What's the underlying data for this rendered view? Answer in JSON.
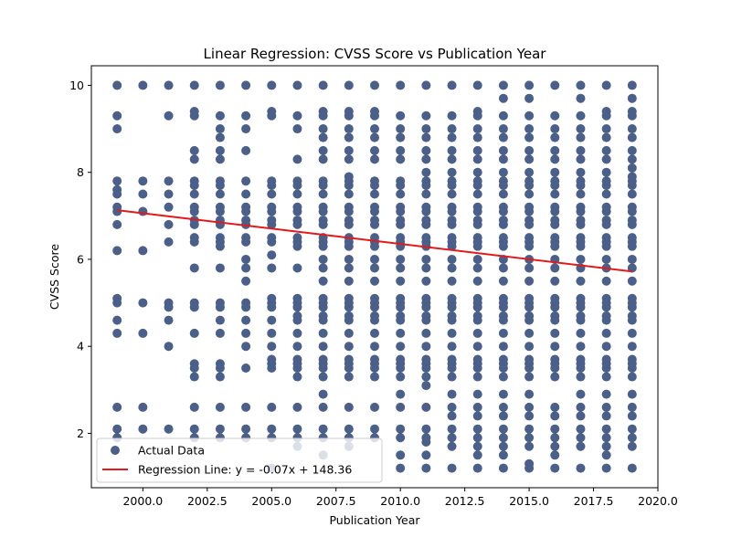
{
  "chart_data": {
    "type": "scatter",
    "title": "Linear Regression: CVSS Score vs Publication Year",
    "xlabel": "Publication Year",
    "ylabel": "CVSS Score",
    "xlim": [
      1998.0,
      2020.0
    ],
    "ylim": [
      0.75,
      10.45
    ],
    "x_ticks": [
      2000.0,
      2002.5,
      2005.0,
      2007.5,
      2010.0,
      2012.5,
      2015.0,
      2017.5,
      2020.0
    ],
    "x_tick_labels": [
      "2000.0",
      "2002.5",
      "2005.0",
      "2007.5",
      "2010.0",
      "2012.5",
      "2015.0",
      "2017.5",
      "2020.0"
    ],
    "y_ticks": [
      2,
      4,
      6,
      8,
      10
    ],
    "y_tick_labels": [
      "2",
      "4",
      "6",
      "8",
      "10"
    ],
    "grid": false,
    "legend_position": "lower-left",
    "colors": {
      "points": "#4a5f8a",
      "line": "#e31a1c"
    },
    "series": [
      {
        "name": "Actual Data",
        "kind": "scatter",
        "points_by_year": [
          {
            "year": 1999,
            "scores": [
              10.0,
              9.3,
              9.0,
              7.8,
              7.6,
              7.5,
              7.2,
              7.1,
              6.8,
              6.2,
              5.1,
              5.0,
              4.6,
              4.3,
              2.6,
              2.1,
              1.9
            ]
          },
          {
            "year": 2000,
            "scores": [
              10.0,
              7.8,
              7.5,
              7.1,
              6.2,
              5.0,
              4.3,
              2.6,
              2.1
            ]
          },
          {
            "year": 2001,
            "scores": [
              10.0,
              9.3,
              7.8,
              7.5,
              7.2,
              6.8,
              6.4,
              5.0,
              4.9,
              4.6,
              4.0,
              2.1
            ]
          },
          {
            "year": 2002,
            "scores": [
              10.0,
              9.4,
              9.3,
              8.5,
              8.3,
              7.8,
              7.7,
              7.5,
              7.2,
              7.1,
              6.9,
              6.8,
              6.5,
              6.4,
              5.8,
              5.0,
              4.9,
              4.3,
              3.6,
              3.5,
              3.3,
              2.6,
              2.1,
              1.9
            ]
          },
          {
            "year": 2003,
            "scores": [
              10.0,
              9.3,
              9.0,
              8.8,
              8.5,
              8.3,
              7.8,
              7.7,
              7.5,
              7.2,
              7.1,
              6.9,
              6.8,
              6.5,
              6.4,
              6.3,
              5.8,
              5.0,
              4.9,
              4.6,
              4.3,
              3.6,
              3.5,
              3.3,
              2.6,
              2.1,
              1.9
            ]
          },
          {
            "year": 2004,
            "scores": [
              10.0,
              9.3,
              9.0,
              8.5,
              7.8,
              7.5,
              7.2,
              7.1,
              6.9,
              6.8,
              6.5,
              6.4,
              6.0,
              5.8,
              5.5,
              5.0,
              4.9,
              4.6,
              4.3,
              4.0,
              3.5,
              2.6,
              2.1,
              1.9
            ]
          },
          {
            "year": 2005,
            "scores": [
              10.0,
              9.4,
              9.3,
              7.8,
              7.7,
              7.5,
              7.2,
              7.1,
              6.9,
              6.8,
              6.5,
              6.4,
              6.1,
              5.8,
              5.1,
              5.0,
              4.9,
              4.6,
              4.3,
              4.0,
              3.7,
              3.6,
              3.5,
              2.6,
              2.1,
              1.9,
              1.2
            ]
          },
          {
            "year": 2006,
            "scores": [
              10.0,
              9.3,
              9.0,
              8.3,
              7.8,
              7.7,
              7.5,
              7.2,
              7.1,
              6.9,
              6.8,
              6.5,
              6.4,
              6.3,
              5.8,
              5.1,
              5.0,
              4.9,
              4.7,
              4.6,
              4.3,
              4.0,
              3.7,
              3.6,
              3.5,
              3.3,
              2.6,
              2.1,
              1.9,
              1.7
            ]
          },
          {
            "year": 2007,
            "scores": [
              10.0,
              9.4,
              9.3,
              9.0,
              8.8,
              8.5,
              8.3,
              7.8,
              7.7,
              7.5,
              7.2,
              7.1,
              6.9,
              6.8,
              6.5,
              6.4,
              6.3,
              6.0,
              5.8,
              5.5,
              5.1,
              5.0,
              4.9,
              4.7,
              4.6,
              4.3,
              4.0,
              3.7,
              3.6,
              3.5,
              3.3,
              2.9,
              2.6,
              2.1,
              1.9,
              1.5
            ]
          },
          {
            "year": 2008,
            "scores": [
              10.0,
              9.4,
              9.3,
              9.0,
              8.8,
              8.5,
              8.3,
              7.9,
              7.8,
              7.7,
              7.5,
              7.2,
              7.1,
              6.9,
              6.8,
              6.5,
              6.4,
              6.3,
              6.0,
              5.8,
              5.5,
              5.1,
              5.0,
              4.9,
              4.7,
              4.6,
              4.3,
              4.0,
              3.7,
              3.6,
              3.5,
              3.3,
              2.6,
              2.1,
              1.9,
              1.7
            ]
          },
          {
            "year": 2009,
            "scores": [
              10.0,
              9.4,
              9.3,
              9.0,
              8.8,
              8.5,
              8.3,
              7.8,
              7.7,
              7.5,
              7.2,
              7.1,
              6.9,
              6.8,
              6.5,
              6.4,
              6.3,
              6.0,
              5.8,
              5.5,
              5.1,
              5.0,
              4.9,
              4.7,
              4.6,
              4.3,
              4.0,
              3.7,
              3.6,
              3.5,
              3.3,
              2.6,
              2.1,
              1.9
            ]
          },
          {
            "year": 2010,
            "scores": [
              10.0,
              9.3,
              9.0,
              8.8,
              8.5,
              8.3,
              7.8,
              7.7,
              7.5,
              7.2,
              7.1,
              6.9,
              6.8,
              6.5,
              6.4,
              6.3,
              6.0,
              5.8,
              5.5,
              5.1,
              5.0,
              4.9,
              4.7,
              4.6,
              4.3,
              4.0,
              3.7,
              3.6,
              3.5,
              3.3,
              2.9,
              2.6,
              2.1,
              1.9,
              1.5,
              1.2
            ]
          },
          {
            "year": 2011,
            "scores": [
              10.0,
              9.3,
              9.0,
              8.8,
              8.5,
              8.3,
              8.0,
              7.8,
              7.7,
              7.5,
              7.2,
              7.1,
              6.9,
              6.8,
              6.5,
              6.4,
              6.3,
              6.0,
              5.8,
              5.5,
              5.1,
              5.0,
              4.9,
              4.7,
              4.6,
              4.3,
              4.0,
              3.7,
              3.6,
              3.5,
              3.3,
              3.1,
              2.6,
              2.1,
              1.9,
              1.8,
              1.5,
              1.2
            ]
          },
          {
            "year": 2012,
            "scores": [
              10.0,
              9.3,
              9.0,
              8.8,
              8.5,
              8.3,
              8.0,
              7.8,
              7.7,
              7.5,
              7.2,
              7.1,
              6.9,
              6.8,
              6.5,
              6.4,
              6.3,
              6.0,
              5.8,
              5.5,
              5.1,
              5.0,
              4.9,
              4.7,
              4.6,
              4.3,
              4.0,
              3.7,
              3.6,
              3.5,
              3.3,
              2.9,
              2.6,
              2.4,
              2.1,
              1.9,
              1.7,
              1.2
            ]
          },
          {
            "year": 2013,
            "scores": [
              10.0,
              9.4,
              9.3,
              9.0,
              8.8,
              8.5,
              8.3,
              8.0,
              7.8,
              7.7,
              7.5,
              7.2,
              7.1,
              6.9,
              6.8,
              6.5,
              6.4,
              6.3,
              6.0,
              5.8,
              5.5,
              5.1,
              5.0,
              4.9,
              4.7,
              4.6,
              4.3,
              4.0,
              3.7,
              3.6,
              3.5,
              3.3,
              2.9,
              2.6,
              2.4,
              2.1,
              1.9,
              1.7,
              1.5,
              1.2
            ]
          },
          {
            "year": 2014,
            "scores": [
              10.0,
              9.7,
              9.3,
              9.0,
              8.8,
              8.5,
              8.3,
              8.0,
              7.8,
              7.7,
              7.5,
              7.2,
              7.1,
              6.9,
              6.8,
              6.5,
              6.4,
              6.3,
              6.0,
              5.8,
              5.5,
              5.1,
              5.0,
              4.9,
              4.7,
              4.6,
              4.3,
              4.0,
              3.7,
              3.6,
              3.5,
              3.3,
              2.9,
              2.6,
              2.4,
              2.1,
              1.9,
              1.7,
              1.5,
              1.2
            ]
          },
          {
            "year": 2015,
            "scores": [
              10.0,
              9.7,
              9.3,
              9.0,
              8.8,
              8.5,
              8.3,
              8.0,
              7.8,
              7.7,
              7.5,
              7.2,
              7.1,
              6.9,
              6.8,
              6.5,
              6.4,
              6.3,
              6.0,
              5.8,
              5.5,
              5.1,
              5.0,
              4.9,
              4.7,
              4.6,
              4.3,
              4.0,
              3.7,
              3.6,
              3.5,
              3.3,
              2.9,
              2.6,
              2.4,
              2.1,
              1.9,
              1.7,
              1.3,
              1.2
            ]
          },
          {
            "year": 2016,
            "scores": [
              10.0,
              9.3,
              9.0,
              8.8,
              8.5,
              8.3,
              8.0,
              7.8,
              7.7,
              7.5,
              7.2,
              7.1,
              6.9,
              6.8,
              6.5,
              6.4,
              6.3,
              6.0,
              5.8,
              5.5,
              5.1,
              5.0,
              4.9,
              4.7,
              4.6,
              4.3,
              4.0,
              3.7,
              3.6,
              3.5,
              3.3,
              2.6,
              2.4,
              2.1,
              1.9,
              1.7,
              1.5,
              1.2
            ]
          },
          {
            "year": 2017,
            "scores": [
              10.0,
              9.7,
              9.3,
              9.0,
              8.8,
              8.5,
              8.3,
              8.0,
              7.8,
              7.7,
              7.5,
              7.2,
              7.1,
              6.9,
              6.8,
              6.5,
              6.4,
              6.3,
              6.0,
              5.8,
              5.5,
              5.1,
              5.0,
              4.9,
              4.7,
              4.6,
              4.3,
              4.0,
              3.7,
              3.6,
              3.5,
              3.3,
              2.9,
              2.6,
              2.4,
              2.1,
              1.9,
              1.7,
              1.2
            ]
          },
          {
            "year": 2018,
            "scores": [
              10.0,
              9.4,
              9.3,
              9.0,
              8.8,
              8.5,
              8.3,
              8.0,
              7.8,
              7.7,
              7.5,
              7.2,
              7.1,
              6.9,
              6.8,
              6.5,
              6.4,
              6.3,
              6.0,
              5.8,
              5.5,
              5.1,
              5.0,
              4.9,
              4.7,
              4.6,
              4.3,
              4.0,
              3.7,
              3.6,
              3.5,
              3.3,
              2.9,
              2.6,
              2.4,
              2.1,
              1.9,
              1.7,
              1.5,
              1.2
            ]
          },
          {
            "year": 2019,
            "scores": [
              10.0,
              9.7,
              9.4,
              9.3,
              9.0,
              8.8,
              8.5,
              8.3,
              8.1,
              7.9,
              7.8,
              7.7,
              7.5,
              7.2,
              7.1,
              6.9,
              6.8,
              6.5,
              6.4,
              6.3,
              6.0,
              5.8,
              5.5,
              5.1,
              5.0,
              4.9,
              4.7,
              4.6,
              4.3,
              4.0,
              3.7,
              3.6,
              3.5,
              3.3,
              2.9,
              2.6,
              2.4,
              2.1,
              1.9,
              1.7,
              1.2
            ]
          }
        ]
      },
      {
        "name": "Regression Line: y = -0.07x + 148.36",
        "kind": "line",
        "x": [
          1999,
          2019
        ],
        "y": [
          7.13,
          5.72
        ]
      }
    ]
  }
}
